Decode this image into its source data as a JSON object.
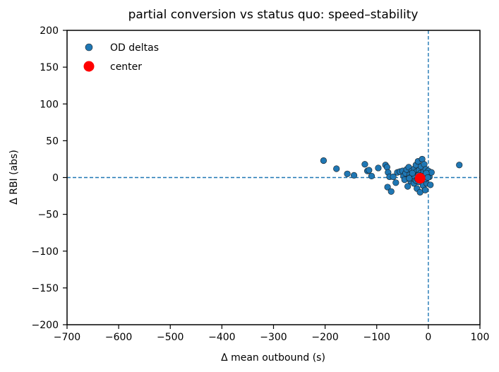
{
  "chart_data": {
    "type": "scatter",
    "title": "partial conversion vs status quo: speed–stability",
    "xlabel": "Δ mean outbound (s)",
    "ylabel": "Δ RBI (abs)",
    "xlim": [
      -700,
      100
    ],
    "ylim": [
      -200,
      200
    ],
    "xticks": [
      -700,
      -600,
      -500,
      -400,
      -300,
      -200,
      -100,
      0,
      100
    ],
    "yticks": [
      -200,
      -150,
      -100,
      -50,
      0,
      50,
      100,
      150,
      200
    ],
    "xtick_labels": [
      "−700",
      "−600",
      "−500",
      "−400",
      "−300",
      "−200",
      "−100",
      "0",
      "100"
    ],
    "ytick_labels": [
      "−200",
      "−150",
      "−100",
      "−50",
      "0",
      "50",
      "100",
      "150",
      "200"
    ],
    "reference_lines": {
      "x": 0,
      "y": 0,
      "style": "dashed",
      "color": "#1f77b4"
    },
    "legend": {
      "position": "top-left",
      "entries": [
        "OD deltas",
        "center"
      ]
    },
    "series": [
      {
        "name": "OD deltas",
        "color": "#1f77b4",
        "points": [
          [
            -203,
            23
          ],
          [
            -178,
            12
          ],
          [
            -157,
            5
          ],
          [
            -144,
            3
          ],
          [
            -123,
            18
          ],
          [
            -118,
            9
          ],
          [
            -115,
            10
          ],
          [
            -110,
            2
          ],
          [
            -97,
            13
          ],
          [
            -83,
            17
          ],
          [
            -80,
            14
          ],
          [
            -78,
            7
          ],
          [
            -79,
            -13
          ],
          [
            -75,
            1
          ],
          [
            -72,
            -19
          ],
          [
            -68,
            1
          ],
          [
            -63,
            -7
          ],
          [
            -60,
            7
          ],
          [
            -55,
            8
          ],
          [
            -50,
            9
          ],
          [
            -48,
            2
          ],
          [
            -46,
            -3
          ],
          [
            -44,
            6
          ],
          [
            -42,
            11
          ],
          [
            -40,
            -12
          ],
          [
            -38,
            14
          ],
          [
            -36,
            4
          ],
          [
            -34,
            -5
          ],
          [
            -32,
            9
          ],
          [
            -30,
            2
          ],
          [
            -28,
            -8
          ],
          [
            -27,
            12
          ],
          [
            -26,
            5
          ],
          [
            -25,
            -2
          ],
          [
            -24,
            17
          ],
          [
            -23,
            8
          ],
          [
            -22,
            -15
          ],
          [
            -21,
            3
          ],
          [
            -20,
            22
          ],
          [
            -19,
            -6
          ],
          [
            -18,
            10
          ],
          [
            -17,
            1
          ],
          [
            -16,
            -20
          ],
          [
            -15,
            6
          ],
          [
            -14,
            15
          ],
          [
            -13,
            -3
          ],
          [
            -12,
            25
          ],
          [
            -11,
            4
          ],
          [
            -10,
            -11
          ],
          [
            -9,
            8
          ],
          [
            -8,
            18
          ],
          [
            -7,
            0
          ],
          [
            -6,
            -17
          ],
          [
            -5,
            11
          ],
          [
            -4,
            2
          ],
          [
            -3,
            -8
          ],
          [
            -2,
            5
          ],
          [
            0,
            9
          ],
          [
            2,
            1
          ],
          [
            4,
            -10
          ],
          [
            6,
            7
          ],
          [
            -35,
            0
          ],
          [
            -29,
            -1
          ],
          [
            -26,
            1
          ],
          [
            -24,
            -4
          ],
          [
            -21,
            -2
          ],
          [
            -19,
            3
          ],
          [
            -17,
            -3
          ],
          [
            -14,
            2
          ],
          [
            -12,
            -1
          ],
          [
            -9,
            2
          ],
          [
            -6,
            -2
          ],
          [
            -4,
            6
          ],
          [
            -1,
            0
          ],
          [
            -31,
            6
          ],
          [
            -37,
            -1
          ],
          [
            60,
            17
          ]
        ]
      },
      {
        "name": "center",
        "color": "#ff0000",
        "points": [
          [
            -16,
            -1
          ]
        ]
      }
    ]
  }
}
